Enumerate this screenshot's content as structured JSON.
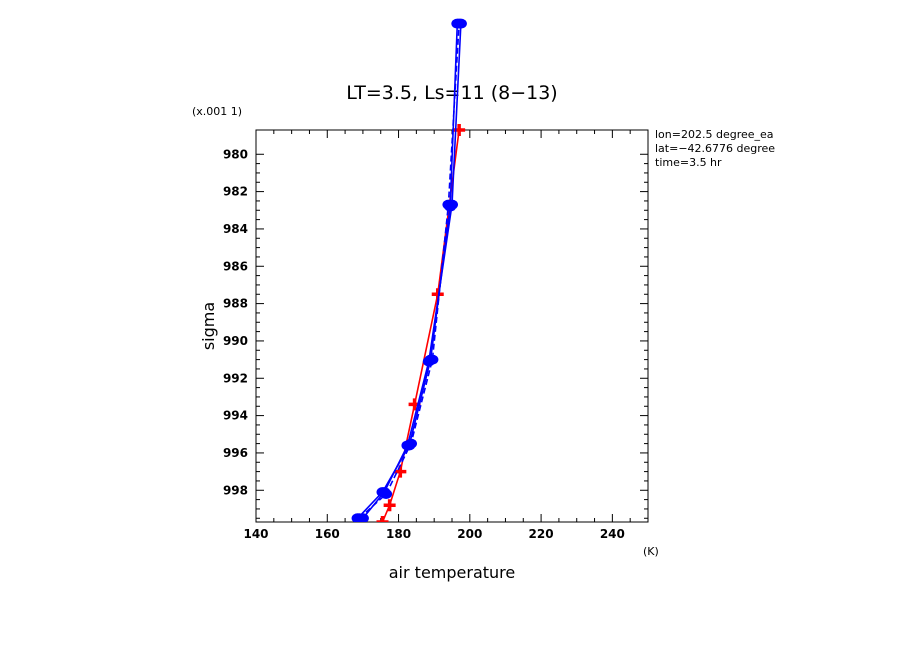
{
  "chart_data": {
    "type": "line",
    "title": "LT=3.5, Ls=11 (8−13)",
    "xlabel": "air temperature",
    "ylabel": "sigma",
    "x_unit_label": "(K)",
    "y_multiplier_label": "(x.001 1)",
    "xlim": [
      140,
      250
    ],
    "ylim": [
      999.7,
      978.7
    ],
    "y_inverted": true,
    "xticks": [
      140,
      160,
      180,
      200,
      220,
      240
    ],
    "yticks": [
      980,
      982,
      984,
      986,
      988,
      990,
      992,
      994,
      996,
      998
    ],
    "annotations": [
      "lon=202.5 degree_ea",
      "lat=−42.6776 degree",
      "time=3.5 hr"
    ],
    "grid": false,
    "series": [
      {
        "color": "#ff0000",
        "marker": "plus",
        "points": [
          [
            175.5,
            999.7
          ],
          [
            177.5,
            998.8
          ],
          [
            180.5,
            997.0
          ],
          [
            184.5,
            993.4
          ],
          [
            191.0,
            987.5
          ],
          [
            197.0,
            978.7
          ]
        ]
      },
      {
        "color": "#0000ff",
        "marker": "circle",
        "points": [
          [
            168.5,
            999.5
          ],
          [
            175.5,
            998.1
          ],
          [
            183.0,
            995.6
          ],
          [
            189.0,
            991.0
          ],
          [
            194.5,
            982.8
          ],
          [
            196.5,
            973.0
          ]
        ]
      },
      {
        "color": "#0000ff",
        "marker": "circle",
        "points": [
          [
            169.0,
            999.5
          ],
          [
            176.5,
            998.2
          ],
          [
            183.5,
            995.5
          ],
          [
            189.5,
            991.0
          ],
          [
            194.0,
            982.7
          ],
          [
            197.0,
            973.0
          ]
        ]
      },
      {
        "color": "#0000ff",
        "marker": "circle",
        "points": [
          [
            170.0,
            999.5
          ],
          [
            176.0,
            998.1
          ],
          [
            182.5,
            995.6
          ],
          [
            188.5,
            991.1
          ],
          [
            195.0,
            982.7
          ],
          [
            197.5,
            973.0
          ]
        ]
      }
    ]
  }
}
